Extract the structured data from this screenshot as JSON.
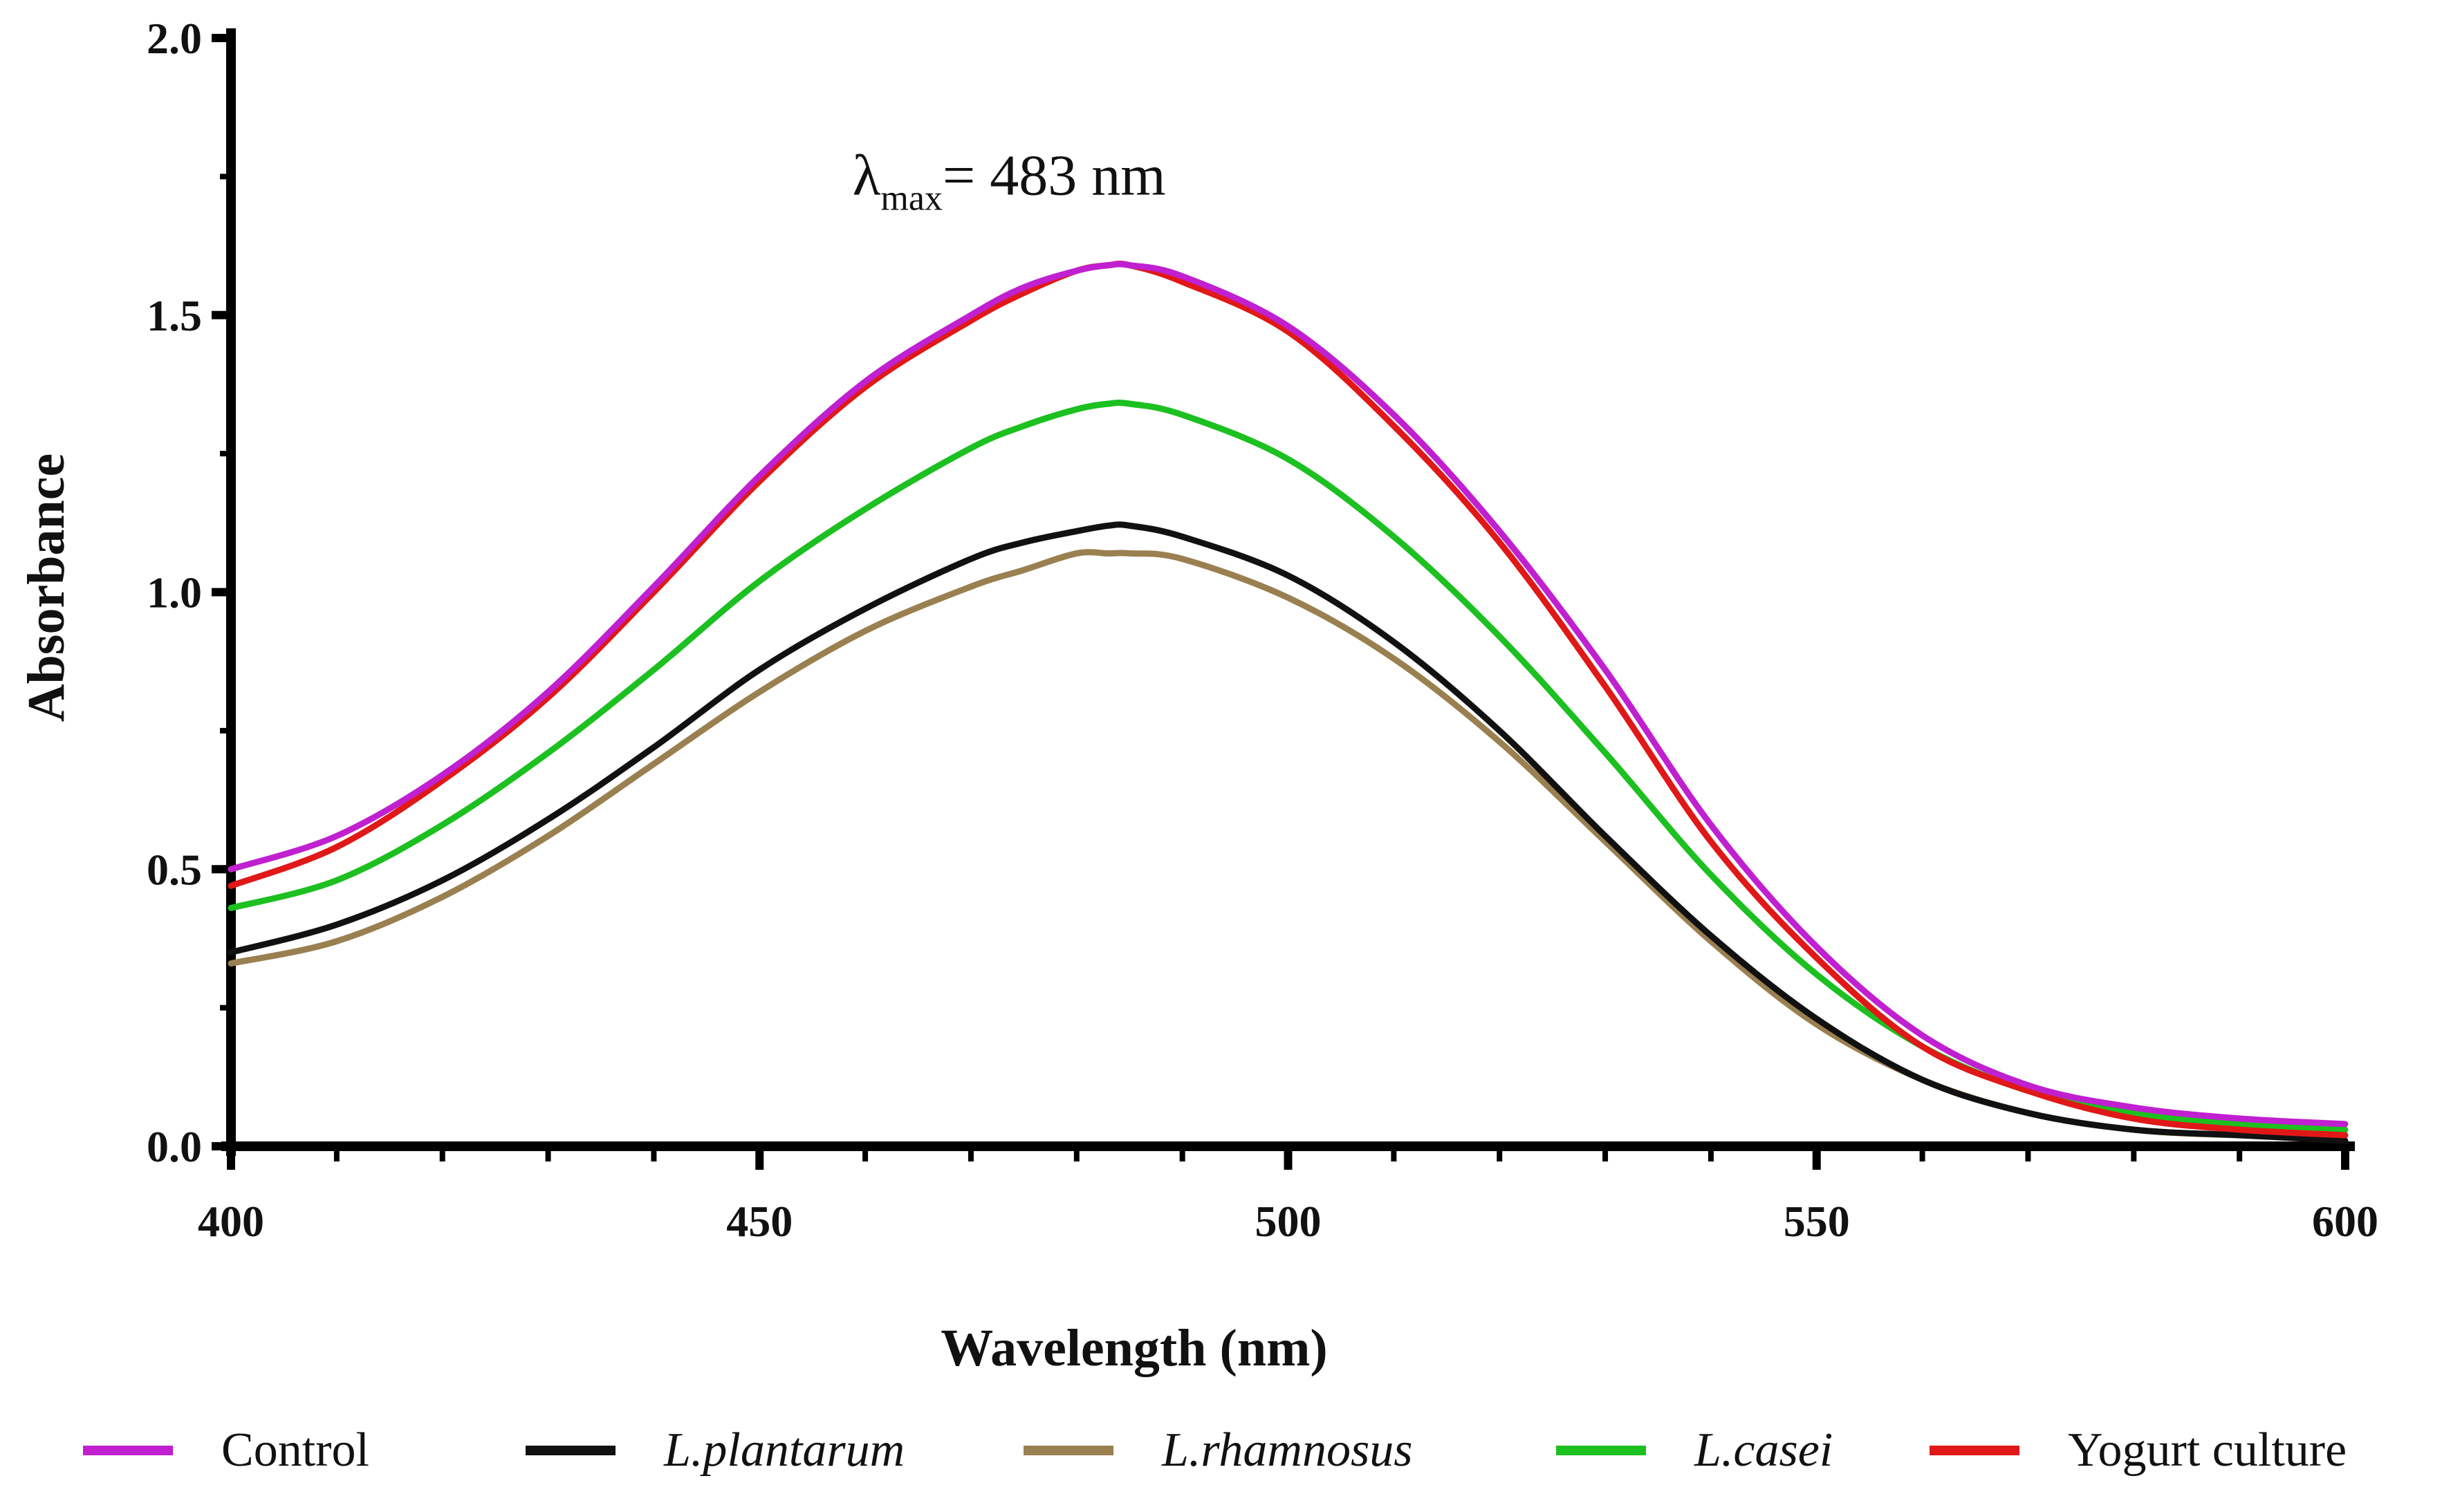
{
  "chart_data": {
    "type": "line",
    "title": "",
    "xlabel": "Wavelength (nm)",
    "ylabel": "Absorbance",
    "xlim": [
      400,
      600
    ],
    "ylim": [
      0.0,
      2.0
    ],
    "x_ticks": [
      "400",
      "450",
      "500",
      "550",
      "600"
    ],
    "y_ticks": [
      "0.0",
      "0.5",
      "1.0",
      "1.5",
      "2.0"
    ],
    "annotation": {
      "symbol": "λ",
      "subscript": "max",
      "text": "= 483 nm",
      "x": 483,
      "y": 1.68
    },
    "x": [
      400,
      410,
      420,
      430,
      440,
      450,
      460,
      470,
      475,
      480,
      483,
      485,
      490,
      500,
      510,
      520,
      530,
      540,
      550,
      560,
      570,
      580,
      590,
      600
    ],
    "series": [
      {
        "name": "Control",
        "italic": false,
        "color": "#c020d0",
        "values": [
          0.5,
          0.56,
          0.67,
          0.82,
          1.01,
          1.21,
          1.38,
          1.5,
          1.55,
          1.58,
          1.59,
          1.59,
          1.57,
          1.48,
          1.32,
          1.11,
          0.86,
          0.58,
          0.36,
          0.2,
          0.11,
          0.07,
          0.05,
          0.04
        ]
      },
      {
        "name": "L.plantarum",
        "italic": true,
        "color": "#111111",
        "values": [
          0.35,
          0.4,
          0.48,
          0.59,
          0.72,
          0.86,
          0.97,
          1.06,
          1.09,
          1.11,
          1.12,
          1.12,
          1.1,
          1.03,
          0.91,
          0.75,
          0.56,
          0.38,
          0.23,
          0.12,
          0.06,
          0.03,
          0.02,
          0.01
        ]
      },
      {
        "name": "L.rhamnosus",
        "italic": true,
        "color": "#9a8050",
        "values": [
          0.33,
          0.37,
          0.45,
          0.56,
          0.69,
          0.82,
          0.93,
          1.01,
          1.04,
          1.07,
          1.07,
          1.07,
          1.06,
          0.99,
          0.88,
          0.73,
          0.55,
          0.37,
          0.22,
          0.12,
          0.06,
          0.03,
          0.02,
          0.02
        ]
      },
      {
        "name": "L.casei",
        "italic": true,
        "color": "#1cc020",
        "values": [
          0.43,
          0.48,
          0.58,
          0.71,
          0.86,
          1.02,
          1.15,
          1.26,
          1.3,
          1.33,
          1.34,
          1.34,
          1.32,
          1.24,
          1.1,
          0.92,
          0.71,
          0.49,
          0.31,
          0.18,
          0.1,
          0.06,
          0.04,
          0.03
        ]
      },
      {
        "name": "Yogurt culture",
        "italic": false,
        "color": "#e01818",
        "values": [
          0.47,
          0.54,
          0.66,
          0.81,
          1.0,
          1.2,
          1.37,
          1.49,
          1.54,
          1.58,
          1.59,
          1.59,
          1.56,
          1.47,
          1.3,
          1.09,
          0.83,
          0.55,
          0.34,
          0.18,
          0.1,
          0.05,
          0.03,
          0.02
        ]
      }
    ],
    "grid": false,
    "legend_position": "bottom"
  }
}
